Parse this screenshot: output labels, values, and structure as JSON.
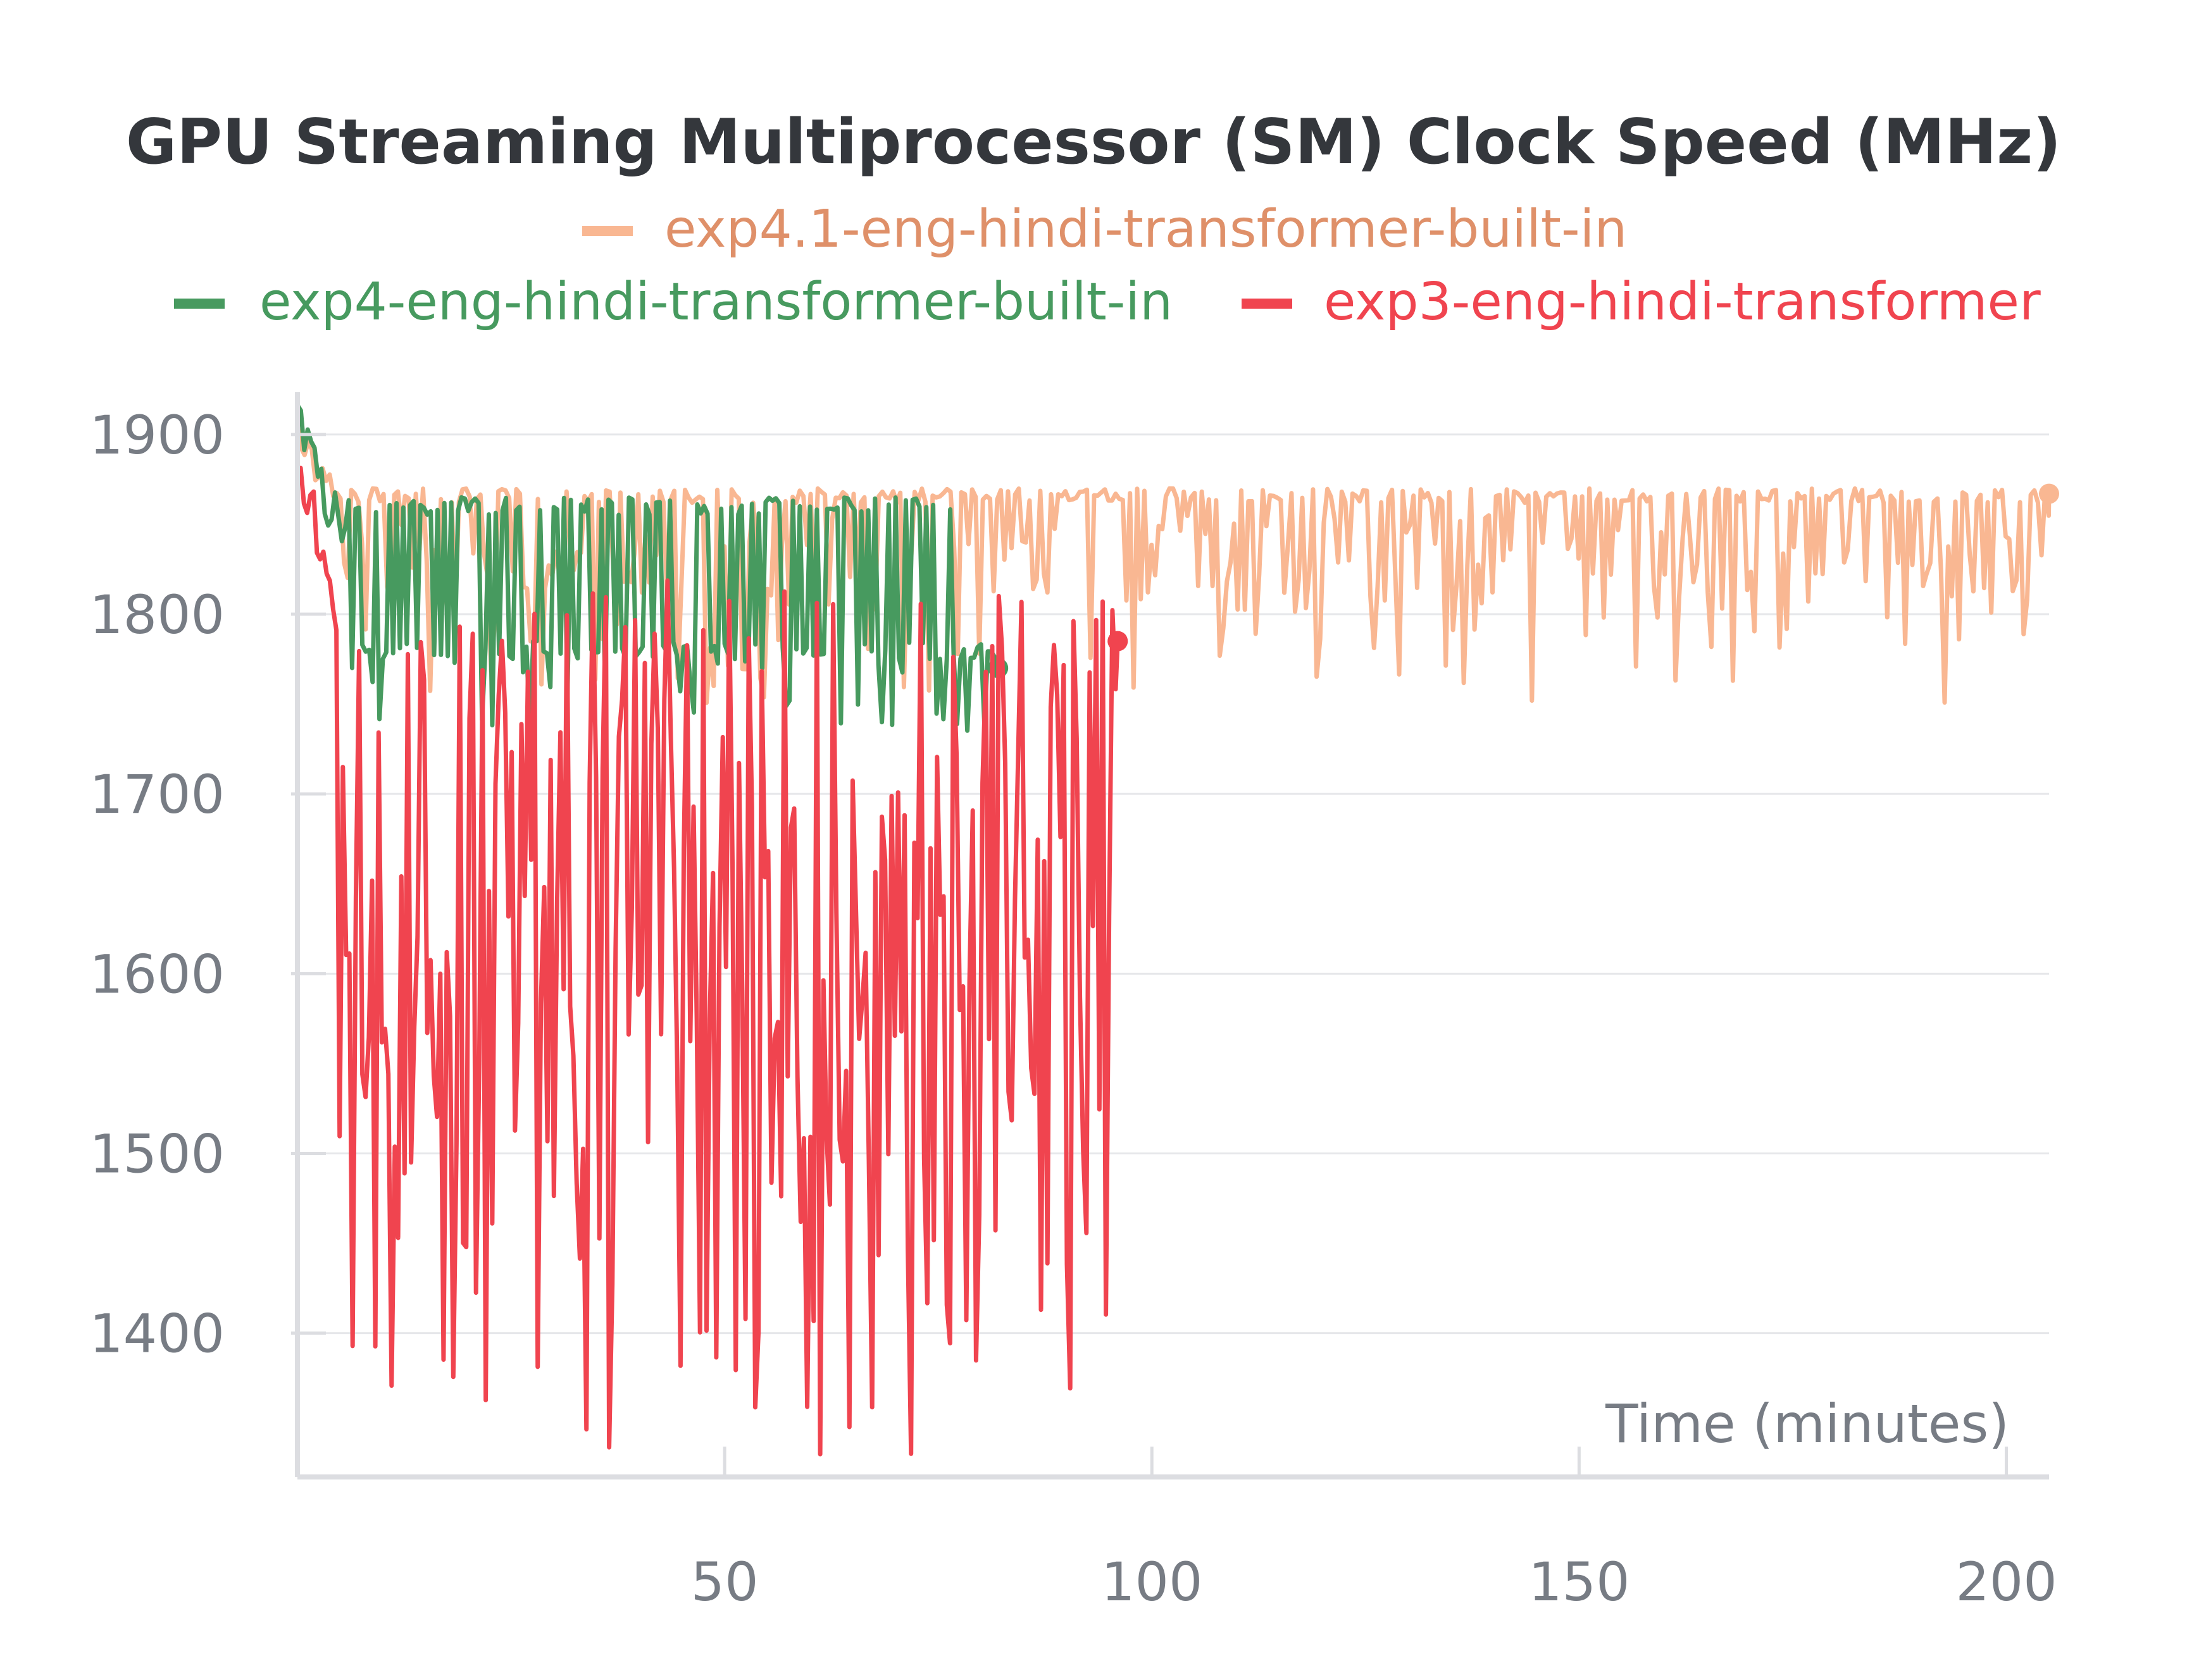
{
  "chart_data": {
    "type": "line",
    "title": "GPU Streaming Multiprocessor (SM) Clock Speed (MHz)",
    "xlabel": "Time (minutes)",
    "ylabel": "",
    "xlim": [
      0,
      205
    ],
    "ylim": [
      1320,
      1920
    ],
    "x_ticks": [
      50,
      100,
      150,
      200
    ],
    "y_ticks": [
      1400,
      1500,
      1600,
      1700,
      1800,
      1900
    ],
    "grid": "horizontal",
    "legend_position": "top",
    "series": [
      {
        "name": "exp4.1-eng-hindi-transformer-built-in",
        "color": "#f9b792",
        "text_color": "#df9069",
        "x_end": 205,
        "end_value": 1867,
        "high": 1866,
        "low_range": [
          1750,
          1840
        ],
        "x": [
          0,
          3,
          6,
          10,
          15,
          20,
          25,
          30,
          35,
          40,
          45,
          50,
          55,
          60,
          65,
          70,
          75,
          80,
          85,
          90,
          95,
          100,
          110,
          120,
          130,
          140,
          150,
          160,
          170,
          180,
          190,
          200,
          205
        ],
        "values": [
          1900,
          1870,
          1866,
          1855,
          1860,
          1850,
          1845,
          1855,
          1850,
          1845,
          1840,
          1850,
          1845,
          1850,
          1840,
          1845,
          1840,
          1845,
          1840,
          1835,
          1840,
          1838,
          1836,
          1840,
          1835,
          1838,
          1832,
          1836,
          1834,
          1830,
          1836,
          1832,
          1867
        ]
      },
      {
        "name": "exp4-eng-hindi-transformer-built-in",
        "color": "#479a5f",
        "text_color": "#479a5f",
        "x_end": 82,
        "end_value": 1770,
        "high": 1860,
        "low_range": [
          1750,
          1780
        ],
        "x": [
          0,
          2,
          4,
          6,
          8,
          10,
          15,
          20,
          25,
          30,
          35,
          40,
          45,
          50,
          55,
          60,
          65,
          70,
          75,
          80,
          82
        ],
        "values": [
          1910,
          1880,
          1860,
          1850,
          1840,
          1835,
          1825,
          1815,
          1810,
          1815,
          1805,
          1810,
          1805,
          1815,
          1810,
          1805,
          1810,
          1805,
          1810,
          1800,
          1770
        ]
      },
      {
        "name": "exp3-eng-hindi-transformer",
        "color": "#f0444f",
        "text_color": "#f0444f",
        "x_end": 96,
        "end_value": 1785,
        "high": 1820,
        "low_range": [
          1330,
          1560
        ],
        "x": [
          0,
          2,
          4,
          6,
          8,
          10,
          15,
          20,
          25,
          30,
          35,
          40,
          45,
          50,
          55,
          60,
          65,
          70,
          75,
          80,
          85,
          90,
          95,
          96
        ],
        "values": [
          1880,
          1850,
          1800,
          1700,
          1660,
          1620,
          1580,
          1570,
          1560,
          1540,
          1550,
          1530,
          1545,
          1540,
          1550,
          1545,
          1560,
          1550,
          1555,
          1565,
          1570,
          1580,
          1620,
          1785
        ]
      }
    ]
  }
}
